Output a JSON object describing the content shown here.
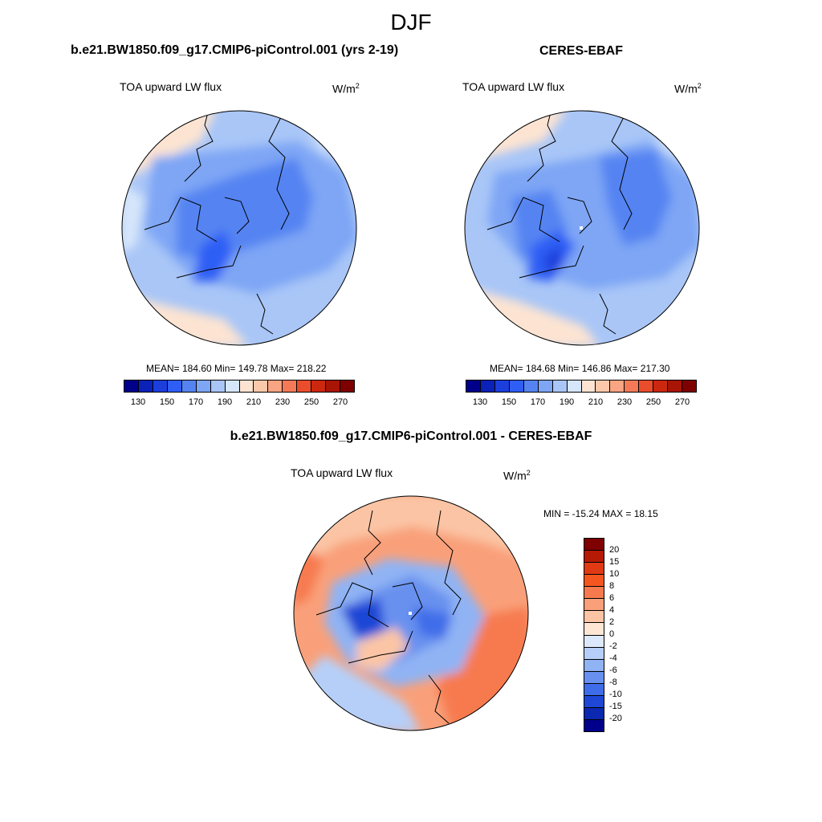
{
  "main_title": "DJF",
  "variable": "TOA upward LW flux",
  "units": {
    "base": "W/m",
    "exp": "2"
  },
  "panels": {
    "model": {
      "title": "b.e21.BW1850.f09_g17.CMIP6-piControl.001 (yrs 2-19)",
      "stats": "MEAN= 184.60  Min= 149.78  Max= 218.22",
      "mean": 184.6,
      "min": 149.78,
      "max": 218.22
    },
    "obs": {
      "title": "CERES-EBAF",
      "stats": "MEAN= 184.68  Min= 146.86  Max= 217.30",
      "mean": 184.68,
      "min": 146.86,
      "max": 217.3
    },
    "diff": {
      "title": "b.e21.BW1850.f09_g17.CMIP6-piControl.001 - CERES-EBAF",
      "stats": "MIN = -15.24 MAX =  18.15",
      "min": -15.24,
      "max": 18.15
    }
  },
  "flux_colorbar": {
    "labels": [
      "130",
      "150",
      "170",
      "190",
      "210",
      "230",
      "250",
      "270"
    ],
    "colors": [
      "#00008b",
      "#0a22b8",
      "#1c3fdc",
      "#2f5ef5",
      "#5584f2",
      "#7ea6f5",
      "#a9c6f7",
      "#d6e6fb",
      "#fde4d2",
      "#fcc8aa",
      "#f9a482",
      "#f47a57",
      "#ea4d2c",
      "#cc2810",
      "#a81505",
      "#7e0000"
    ]
  },
  "diff_colorbar": {
    "labels": [
      "20",
      "15",
      "10",
      "8",
      "6",
      "4",
      "2",
      "0",
      "-2",
      "-4",
      "-6",
      "-8",
      "-10",
      "-15",
      "-20"
    ],
    "colors": [
      "#7e0000",
      "#b51a05",
      "#e03a15",
      "#f5561f",
      "#f77a4f",
      "#f9a07a",
      "#fbc5a5",
      "#fde6d4",
      "#dce9fb",
      "#b6cff8",
      "#90b3f4",
      "#6891ef",
      "#3f6de9",
      "#1f47d6",
      "#0a28b0",
      "#00008b"
    ]
  },
  "chart_data": {
    "type": "heatmap",
    "title": "DJF",
    "projection": "north polar stereographic",
    "variable": "TOA upward LW flux",
    "units": "W/m2",
    "panels": [
      {
        "name": "b.e21.BW1850.f09_g17.CMIP6-piControl.001 (yrs 2-19)",
        "mean": 184.6,
        "min": 149.78,
        "max": 218.22,
        "levels": [
          130,
          140,
          150,
          160,
          170,
          180,
          190,
          200,
          210,
          220,
          230,
          240,
          250,
          260,
          270
        ]
      },
      {
        "name": "CERES-EBAF",
        "mean": 184.68,
        "min": 146.86,
        "max": 217.3,
        "levels": [
          130,
          140,
          150,
          160,
          170,
          180,
          190,
          200,
          210,
          220,
          230,
          240,
          250,
          260,
          270
        ]
      },
      {
        "name": "b.e21.BW1850.f09_g17.CMIP6-piControl.001 - CERES-EBAF",
        "min": -15.24,
        "max": 18.15,
        "levels": [
          -20,
          -15,
          -10,
          -8,
          -6,
          -4,
          -2,
          0,
          2,
          4,
          6,
          8,
          10,
          15,
          20
        ]
      }
    ]
  }
}
